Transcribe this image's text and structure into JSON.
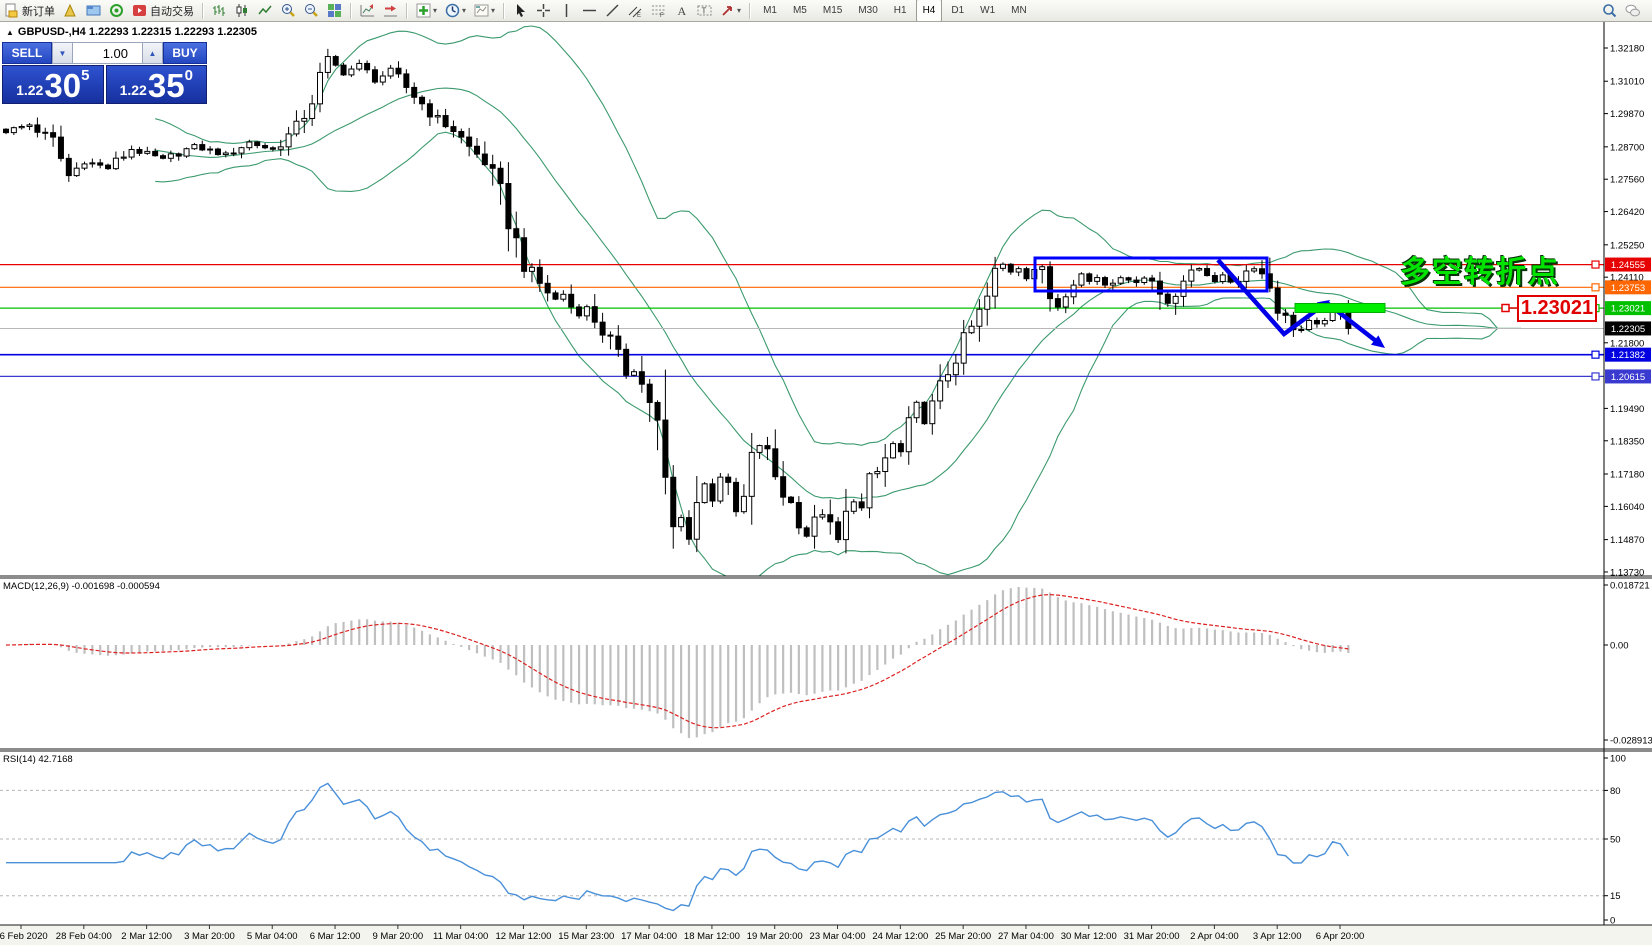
{
  "toolbar": {
    "groups": [
      [
        {
          "icon": "new-order-icon",
          "label": "新订单"
        },
        {
          "icon": "new-chart-icon"
        },
        {
          "icon": "profiles-icon"
        },
        {
          "icon": "signals-icon"
        },
        {
          "icon": "autotrading-icon",
          "label": "自动交易"
        }
      ],
      [
        {
          "icon": "bars-chart-icon"
        },
        {
          "icon": "candlestick-chart-icon"
        },
        {
          "icon": "line-chart-icon"
        },
        {
          "icon": "zoom-in-icon"
        },
        {
          "icon": "zoom-out-icon"
        },
        {
          "icon": "tile-windows-icon"
        }
      ],
      [
        {
          "icon": "auto-scroll-icon"
        },
        {
          "icon": "chart-shift-icon"
        }
      ],
      [
        {
          "icon": "indicators-add-icon",
          "caret": true
        },
        {
          "icon": "periods-clock-icon",
          "caret": true
        },
        {
          "icon": "templates-icon",
          "caret": true
        }
      ],
      [
        {
          "icon": "cursor-icon"
        },
        {
          "icon": "crosshair-icon"
        },
        {
          "icon": "vertical-line-icon"
        },
        {
          "icon": "horizontal-line-icon"
        },
        {
          "icon": "trendline-icon"
        },
        {
          "icon": "channel-icon"
        },
        {
          "icon": "fibonacci-icon"
        },
        {
          "icon": "text-icon"
        },
        {
          "icon": "label-icon"
        },
        {
          "icon": "arrows-icon",
          "caret": true
        }
      ],
      [
        {
          "label": "M1"
        },
        {
          "label": "M5"
        },
        {
          "label": "M15"
        },
        {
          "label": "M30"
        },
        {
          "label": "H1"
        },
        {
          "label": "H4",
          "active": true
        },
        {
          "label": "D1"
        },
        {
          "label": "W1"
        },
        {
          "label": "MN"
        }
      ]
    ],
    "right_icons": [
      {
        "icon": "search-icon"
      },
      {
        "icon": "chat-icon"
      }
    ]
  },
  "chart": {
    "collapse_glyph": "▲",
    "title": "GBPUSD-,H4  1.22293 1.22315 1.22293 1.22305"
  },
  "trade_panel": {
    "sell_label": "SELL",
    "buy_label": "BUY",
    "volume": "1.00",
    "spin_down": "▼",
    "spin_up": "▲",
    "sell_small": "1.22",
    "sell_big": "30",
    "sell_sup": "5",
    "buy_small": "1.22",
    "buy_big": "35",
    "buy_sup": "0"
  },
  "macd": {
    "label": "MACD(12,26,9) -0.001698 -0.000594",
    "axis": [
      "0.018721",
      "0.00",
      "-0.028913"
    ]
  },
  "rsi": {
    "label": "RSI(14) 42.7168",
    "axis": [
      "100",
      "80",
      "50",
      "15",
      "0"
    ]
  },
  "annotations": {
    "turning_point_text": "多空转折点",
    "price_callout": "1.23021"
  },
  "chart_data": {
    "type": "candlestick",
    "symbol": "GBPUSD-",
    "period": "H4",
    "quote": {
      "open": 1.22293,
      "high": 1.22315,
      "low": 1.22293,
      "close": 1.22305
    },
    "bars": 172,
    "current_price": 1.22305,
    "close_anchors": [
      [
        0,
        1.2925
      ],
      [
        3,
        1.2948
      ],
      [
        6,
        1.289
      ],
      [
        8,
        1.2768
      ],
      [
        10,
        1.282
      ],
      [
        13,
        1.2795
      ],
      [
        16,
        1.2862
      ],
      [
        20,
        1.2825
      ],
      [
        24,
        1.2872
      ],
      [
        28,
        1.2842
      ],
      [
        31,
        1.2886
      ],
      [
        34,
        1.286
      ],
      [
        37,
        1.2935
      ],
      [
        39,
        1.304
      ],
      [
        41,
        1.3175
      ],
      [
        43,
        1.313
      ],
      [
        45,
        1.3158
      ],
      [
        47,
        1.3105
      ],
      [
        49,
        1.3138
      ],
      [
        51,
        1.308
      ],
      [
        53,
        1.3022
      ],
      [
        55,
        1.2965
      ],
      [
        57,
        1.293
      ],
      [
        59,
        1.2868
      ],
      [
        61,
        1.282
      ],
      [
        63,
        1.27
      ],
      [
        64,
        1.262
      ],
      [
        65,
        1.253
      ],
      [
        66,
        1.2462
      ],
      [
        67,
        1.242
      ],
      [
        68,
        1.2388
      ],
      [
        69,
        1.236
      ],
      [
        70,
        1.2332
      ],
      [
        71,
        1.2352
      ],
      [
        72,
        1.2308
      ],
      [
        73,
        1.2282
      ],
      [
        74,
        1.2302
      ],
      [
        75,
        1.2262
      ],
      [
        76,
        1.2222
      ],
      [
        77,
        1.2182
      ],
      [
        78,
        1.2122
      ],
      [
        79,
        1.2072
      ],
      [
        80,
        1.2092
      ],
      [
        81,
        1.2032
      ],
      [
        82,
        1.1982
      ],
      [
        83,
        1.1872
      ],
      [
        84,
        1.1652
      ],
      [
        85,
        1.1525
      ],
      [
        86,
        1.1562
      ],
      [
        87,
        1.1505
      ],
      [
        88,
        1.1622
      ],
      [
        89,
        1.1682
      ],
      [
        90,
        1.1632
      ],
      [
        91,
        1.1712
      ],
      [
        92,
        1.1652
      ],
      [
        93,
        1.1582
      ],
      [
        94,
        1.1622
      ],
      [
        95,
        1.1752
      ],
      [
        96,
        1.1822
      ],
      [
        97,
        1.1782
      ],
      [
        98,
        1.1712
      ],
      [
        99,
        1.1652
      ],
      [
        100,
        1.1612
      ],
      [
        101,
        1.1562
      ],
      [
        102,
        1.1502
      ],
      [
        103,
        1.1545
      ],
      [
        104,
        1.1582
      ],
      [
        105,
        1.1522
      ],
      [
        106,
        1.1482
      ],
      [
        107,
        1.1562
      ],
      [
        108,
        1.1632
      ],
      [
        109,
        1.1592
      ],
      [
        110,
        1.1682
      ],
      [
        111,
        1.1722
      ],
      [
        112,
        1.1772
      ],
      [
        113,
        1.1822
      ],
      [
        114,
        1.1792
      ],
      [
        115,
        1.1868
      ],
      [
        116,
        1.1958
      ],
      [
        117,
        1.1902
      ],
      [
        118,
        1.1952
      ],
      [
        119,
        1.2012
      ],
      [
        120,
        1.2082
      ],
      [
        121,
        1.2132
      ],
      [
        122,
        1.2182
      ],
      [
        123,
        1.2232
      ],
      [
        124,
        1.2282
      ],
      [
        125,
        1.2335
      ],
      [
        126,
        1.2422
      ],
      [
        127,
        1.2455
      ],
      [
        128,
        1.2432
      ],
      [
        129,
        1.2448
      ],
      [
        130,
        1.2412
      ],
      [
        131,
        1.244
      ],
      [
        132,
        1.2422
      ],
      [
        133,
        1.2342
      ],
      [
        134,
        1.2312
      ],
      [
        135,
        1.2372
      ],
      [
        136,
        1.2402
      ],
      [
        137,
        1.2422
      ],
      [
        138,
        1.2396
      ],
      [
        139,
        1.2412
      ],
      [
        140,
        1.2386
      ],
      [
        141,
        1.2402
      ],
      [
        142,
        1.2416
      ],
      [
        143,
        1.2392
      ],
      [
        144,
        1.2402
      ],
      [
        145,
        1.2412
      ],
      [
        146,
        1.2396
      ],
      [
        147,
        1.2352
      ],
      [
        148,
        1.2322
      ],
      [
        149,
        1.2366
      ],
      [
        150,
        1.2402
      ],
      [
        151,
        1.2422
      ],
      [
        152,
        1.2442
      ],
      [
        153,
        1.2426
      ],
      [
        154,
        1.2402
      ],
      [
        155,
        1.2412
      ],
      [
        156,
        1.2396
      ],
      [
        157,
        1.2406
      ],
      [
        158,
        1.2432
      ],
      [
        159,
        1.2448
      ],
      [
        160,
        1.2422
      ],
      [
        161,
        1.2382
      ],
      [
        162,
        1.2312
      ],
      [
        163,
        1.2262
      ],
      [
        164,
        1.2236
      ],
      [
        165,
        1.2226
      ],
      [
        166,
        1.2252
      ],
      [
        167,
        1.2236
      ],
      [
        168,
        1.2276
      ],
      [
        169,
        1.2302
      ],
      [
        170,
        1.2286
      ],
      [
        171,
        1.22305
      ]
    ],
    "forced_highs": [
      [
        41,
        1.3215
      ]
    ],
    "forced_lows": [
      [
        85,
        1.1455
      ],
      [
        106,
        1.1475
      ],
      [
        133,
        1.229
      ],
      [
        147,
        1.2296
      ]
    ],
    "indicators": {
      "bollinger": {
        "period": 20,
        "deviation": 2,
        "color": "#3c9a6e"
      },
      "macd": {
        "fast": 12,
        "slow": 26,
        "signal": 9,
        "value": -0.001698,
        "signal_value": -0.000594,
        "hist_color": "#bfbfbf",
        "signal_color": "#dd2222"
      },
      "rsi": {
        "period": 14,
        "value": 42.7168,
        "color": "#4a90d9",
        "levels": [
          80,
          50,
          15
        ]
      }
    },
    "hlines": [
      {
        "price": 1.24555,
        "color": "#e60000",
        "label": "1.24555"
      },
      {
        "price": 1.23753,
        "color": "#ff6600",
        "label": "1.23753"
      },
      {
        "price": 1.23021,
        "color": "#00c000",
        "label": "1.23021"
      },
      {
        "price": 1.21382,
        "color": "#0000e0",
        "label": "1.21382"
      },
      {
        "price": 1.20615,
        "color": "#3a3ad0",
        "label": "1.20615"
      }
    ],
    "bid_label": "1.22305",
    "price_axis_ticks": [
      "1.32180",
      "1.31010",
      "1.29870",
      "1.28700",
      "1.27560",
      "1.26420",
      "1.25250",
      "1.24110",
      "1.21800",
      "1.19490",
      "1.18350",
      "1.17180",
      "1.16040",
      "1.14870",
      "1.13730"
    ],
    "dates": [
      "26 Feb 2020",
      "28 Feb 04:00",
      "2 Mar 12:00",
      "3 Mar 20:00",
      "5 Mar 04:00",
      "6 Mar 12:00",
      "9 Mar 20:00",
      "11 Mar 04:00",
      "12 Mar 12:00",
      "15 Mar 23:00",
      "17 Mar 04:00",
      "18 Mar 12:00",
      "19 Mar 20:00",
      "23 Mar 04:00",
      "24 Mar 12:00",
      "25 Mar 20:00",
      "27 Mar 04:00",
      "30 Mar 12:00",
      "31 Mar 20:00",
      "2 Apr 04:00",
      "3 Apr 12:00",
      "6 Apr 20:00"
    ]
  }
}
